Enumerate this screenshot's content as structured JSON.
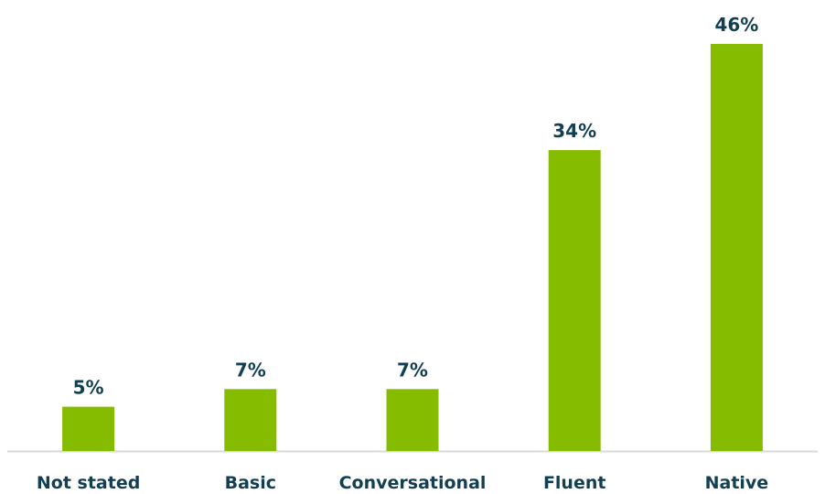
{
  "colors": {
    "bar": "#86bc00",
    "text": "#123f52",
    "axis": "#d9d9d9",
    "background": "#ffffff"
  },
  "chart_data": {
    "type": "bar",
    "title": "",
    "xlabel": "",
    "ylabel": "",
    "categories": [
      "Not stated",
      "Basic",
      "Conversational",
      "Fluent",
      "Native"
    ],
    "values": [
      5,
      7,
      7,
      34,
      46
    ],
    "value_labels": [
      "5%",
      "7%",
      "7%",
      "34%",
      "46%"
    ],
    "ylim": [
      0,
      46
    ],
    "grid": false,
    "legend": "none"
  }
}
